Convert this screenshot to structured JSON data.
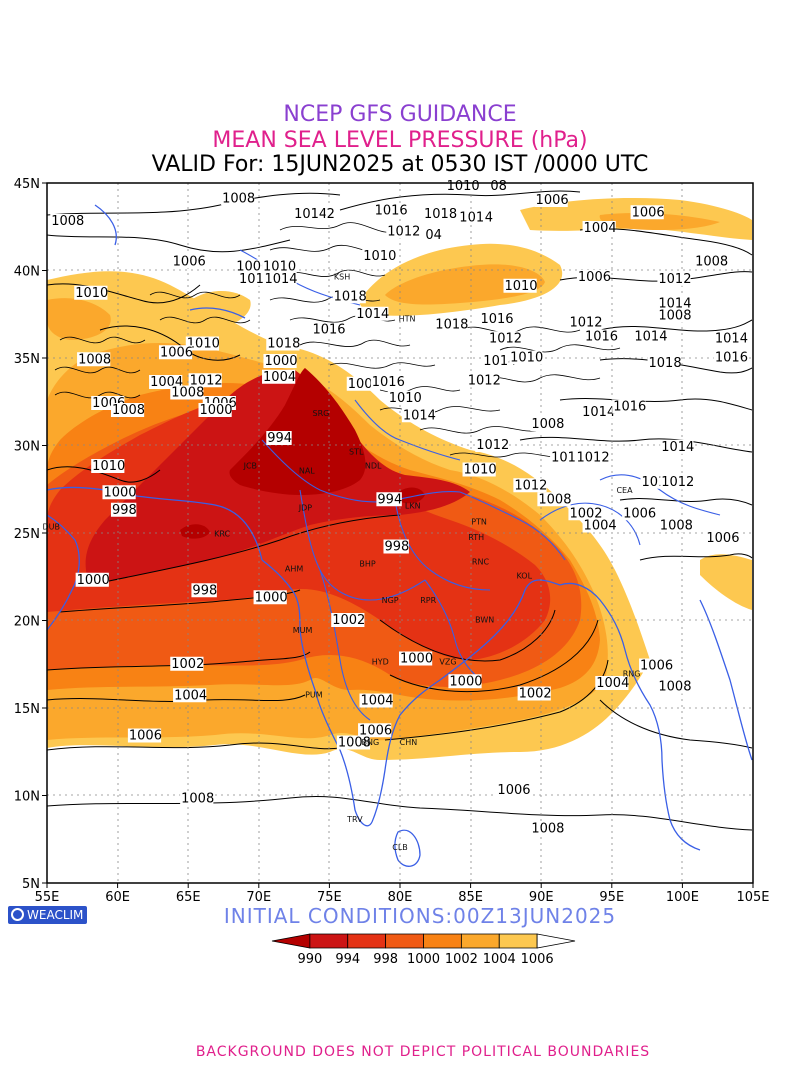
{
  "titles": {
    "line1": "NCEP GFS GUIDANCE",
    "line2": "MEAN SEA LEVEL PRESSURE (hPa)",
    "line3": "VALID For: 15JUN2025 at 0530 IST /0000 UTC"
  },
  "initial_conditions": "INITIAL CONDITIONS:00Z13JUN2025",
  "logo_text": "WEACLIM",
  "footer": "BACKGROUND DOES NOT DEPICT POLITICAL BOUNDARIES",
  "axes": {
    "lon_range": [
      55,
      105
    ],
    "lat_range": [
      5,
      45
    ],
    "lon_ticks": [
      "55E",
      "60E",
      "65E",
      "70E",
      "75E",
      "80E",
      "85E",
      "90E",
      "95E",
      "100E",
      "105E"
    ],
    "lat_ticks": [
      "45N",
      "40N",
      "35N",
      "30N",
      "25N",
      "20N",
      "15N",
      "10N",
      "5N"
    ],
    "grid": true
  },
  "legend": {
    "values": [
      "990",
      "994",
      "998",
      "1000",
      "1002",
      "1004",
      "1006"
    ],
    "colors": [
      "#b40000",
      "#cc1414",
      "#e43214",
      "#f05a14",
      "#f88214",
      "#fba82c",
      "#fdc850",
      "#ffffff"
    ]
  },
  "contour_labels": [
    {
      "text": "1008",
      "lon": 55.3,
      "lat": 42.6
    },
    {
      "text": "1008",
      "lon": 67.4,
      "lat": 43.9
    },
    {
      "text": "1010",
      "lon": 83.3,
      "lat": 44.6
    },
    {
      "text": "08",
      "lon": 86.4,
      "lat": 44.6
    },
    {
      "text": "1014",
      "lon": 72.5,
      "lat": 43.0
    },
    {
      "text": "2",
      "lon": 74.8,
      "lat": 43.0
    },
    {
      "text": "1016",
      "lon": 78.2,
      "lat": 43.2
    },
    {
      "text": "1018",
      "lon": 81.7,
      "lat": 43.0
    },
    {
      "text": "1016",
      "lon": 84.2,
      "lat": 42.8
    },
    {
      "text": "4",
      "lon": 86.0,
      "lat": 42.8
    },
    {
      "text": "1012",
      "lon": 79.1,
      "lat": 42.0
    },
    {
      "text": "04",
      "lon": 81.8,
      "lat": 41.8
    },
    {
      "text": "1006",
      "lon": 89.6,
      "lat": 43.8
    },
    {
      "text": "1006",
      "lon": 96.4,
      "lat": 43.1
    },
    {
      "text": "1004",
      "lon": 93.0,
      "lat": 42.2
    },
    {
      "text": "1006",
      "lon": 63.9,
      "lat": 40.3
    },
    {
      "text": "1006",
      "lon": 68.4,
      "lat": 40.0
    },
    {
      "text": "1010",
      "lon": 70.3,
      "lat": 40.0
    },
    {
      "text": "1010",
      "lon": 77.4,
      "lat": 40.6
    },
    {
      "text": "1008",
      "lon": 100.9,
      "lat": 40.3
    },
    {
      "text": "1012",
      "lon": 98.3,
      "lat": 39.3
    },
    {
      "text": "1006",
      "lon": 92.6,
      "lat": 39.4
    },
    {
      "text": "1010",
      "lon": 87.4,
      "lat": 38.9
    },
    {
      "text": "1014",
      "lon": 98.3,
      "lat": 37.9
    },
    {
      "text": "1008",
      "lon": 98.3,
      "lat": 37.2
    },
    {
      "text": "1010",
      "lon": 57.0,
      "lat": 38.5
    },
    {
      "text": "1016",
      "lon": 68.6,
      "lat": 39.3
    },
    {
      "text": "1014",
      "lon": 70.4,
      "lat": 39.3
    },
    {
      "text": "1018",
      "lon": 75.3,
      "lat": 38.3
    },
    {
      "text": "1014",
      "lon": 76.9,
      "lat": 37.3
    },
    {
      "text": "1018",
      "lon": 82.5,
      "lat": 36.7
    },
    {
      "text": "1016",
      "lon": 85.7,
      "lat": 37.0
    },
    {
      "text": "1012",
      "lon": 92.0,
      "lat": 36.8
    },
    {
      "text": "1016",
      "lon": 93.1,
      "lat": 36.0
    },
    {
      "text": "1014",
      "lon": 96.6,
      "lat": 36.0
    },
    {
      "text": "1012",
      "lon": 86.3,
      "lat": 35.9
    },
    {
      "text": "1016",
      "lon": 73.8,
      "lat": 36.4
    },
    {
      "text": "1018",
      "lon": 70.6,
      "lat": 35.6
    },
    {
      "text": "1014",
      "lon": 102.3,
      "lat": 35.9
    },
    {
      "text": "1016",
      "lon": 102.3,
      "lat": 34.8
    },
    {
      "text": "1018",
      "lon": 97.6,
      "lat": 34.5
    },
    {
      "text": "1010",
      "lon": 64.9,
      "lat": 35.6
    },
    {
      "text": "1008",
      "lon": 57.2,
      "lat": 34.7
    },
    {
      "text": "1006",
      "lon": 63.0,
      "lat": 35.1
    },
    {
      "text": "1004",
      "lon": 62.3,
      "lat": 33.4
    },
    {
      "text": "1012",
      "lon": 65.1,
      "lat": 33.5
    },
    {
      "text": "1008",
      "lon": 63.8,
      "lat": 32.8
    },
    {
      "text": "1006",
      "lon": 58.2,
      "lat": 32.2
    },
    {
      "text": "1008",
      "lon": 59.6,
      "lat": 31.8
    },
    {
      "text": "1006",
      "lon": 66.1,
      "lat": 32.2
    },
    {
      "text": "1000",
      "lon": 65.8,
      "lat": 31.8
    },
    {
      "text": "1000",
      "lon": 70.4,
      "lat": 34.6
    },
    {
      "text": "1004",
      "lon": 70.3,
      "lat": 33.7
    },
    {
      "text": "1008",
      "lon": 76.3,
      "lat": 33.3
    },
    {
      "text": "1016",
      "lon": 78.0,
      "lat": 33.4
    },
    {
      "text": "1012",
      "lon": 84.8,
      "lat": 33.5
    },
    {
      "text": "1014",
      "lon": 85.9,
      "lat": 34.6
    },
    {
      "text": "1010",
      "lon": 87.8,
      "lat": 34.8
    },
    {
      "text": "1010",
      "lon": 79.2,
      "lat": 32.5
    },
    {
      "text": "1014",
      "lon": 80.2,
      "lat": 31.5
    },
    {
      "text": "1014",
      "lon": 92.9,
      "lat": 31.7
    },
    {
      "text": "1016",
      "lon": 95.1,
      "lat": 32.0
    },
    {
      "text": "1008",
      "lon": 89.3,
      "lat": 31.0
    },
    {
      "text": "1012",
      "lon": 85.4,
      "lat": 29.8
    },
    {
      "text": "1014",
      "lon": 98.5,
      "lat": 29.7
    },
    {
      "text": "1012",
      "lon": 90.7,
      "lat": 29.1
    },
    {
      "text": "1012",
      "lon": 92.5,
      "lat": 29.1
    },
    {
      "text": "1010",
      "lon": 84.5,
      "lat": 28.4
    },
    {
      "text": "1012",
      "lon": 88.1,
      "lat": 27.5
    },
    {
      "text": "1011",
      "lon": 97.1,
      "lat": 27.7
    },
    {
      "text": "1012",
      "lon": 98.5,
      "lat": 27.7
    },
    {
      "text": "994",
      "lon": 70.6,
      "lat": 30.2
    },
    {
      "text": "994",
      "lon": 78.4,
      "lat": 26.7
    },
    {
      "text": "998",
      "lon": 78.9,
      "lat": 24.0
    },
    {
      "text": "998",
      "lon": 65.3,
      "lat": 21.5
    },
    {
      "text": "1000",
      "lon": 57.1,
      "lat": 22.1
    },
    {
      "text": "1000",
      "lon": 69.7,
      "lat": 21.1
    },
    {
      "text": "1000",
      "lon": 59.0,
      "lat": 27.1
    },
    {
      "text": "998",
      "lon": 59.6,
      "lat": 26.1
    },
    {
      "text": "1010",
      "lon": 58.2,
      "lat": 28.6
    },
    {
      "text": "1008",
      "lon": 89.8,
      "lat": 26.7
    },
    {
      "text": "1002",
      "lon": 92.0,
      "lat": 25.9
    },
    {
      "text": "1004",
      "lon": 93.0,
      "lat": 25.2
    },
    {
      "text": "1006",
      "lon": 95.8,
      "lat": 25.9
    },
    {
      "text": "1008",
      "lon": 98.4,
      "lat": 25.2
    },
    {
      "text": "1006",
      "lon": 101.7,
      "lat": 24.5
    },
    {
      "text": "1002",
      "lon": 75.2,
      "lat": 19.8
    },
    {
      "text": "1000",
      "lon": 80.0,
      "lat": 17.6
    },
    {
      "text": "1000",
      "lon": 83.5,
      "lat": 16.3
    },
    {
      "text": "1002",
      "lon": 63.8,
      "lat": 17.3
    },
    {
      "text": "1004",
      "lon": 64.0,
      "lat": 15.5
    },
    {
      "text": "1004",
      "lon": 77.2,
      "lat": 15.2
    },
    {
      "text": "1002",
      "lon": 88.4,
      "lat": 15.6
    },
    {
      "text": "1004",
      "lon": 93.9,
      "lat": 16.2
    },
    {
      "text": "1006",
      "lon": 97.0,
      "lat": 17.2
    },
    {
      "text": "1008",
      "lon": 98.3,
      "lat": 16.0
    },
    {
      "text": "1006",
      "lon": 60.8,
      "lat": 13.2
    },
    {
      "text": "1006",
      "lon": 77.1,
      "lat": 13.5
    },
    {
      "text": "1008",
      "lon": 75.6,
      "lat": 12.8
    },
    {
      "text": "1006",
      "lon": 86.9,
      "lat": 10.1
    },
    {
      "text": "1008",
      "lon": 64.5,
      "lat": 9.6
    },
    {
      "text": "1008",
      "lon": 89.3,
      "lat": 7.9
    }
  ],
  "station_labels": [
    {
      "text": "SRG",
      "lon": 74.4,
      "lat": 31.7
    },
    {
      "text": "JCB",
      "lon": 69.4,
      "lat": 28.7
    },
    {
      "text": "NAL",
      "lon": 73.4,
      "lat": 28.4
    },
    {
      "text": "STL",
      "lon": 76.9,
      "lat": 29.5
    },
    {
      "text": "NDL",
      "lon": 78.1,
      "lat": 28.7
    },
    {
      "text": "JDP",
      "lon": 73.3,
      "lat": 26.3
    },
    {
      "text": "LKN",
      "lon": 80.9,
      "lat": 26.4
    },
    {
      "text": "PTN",
      "lon": 85.6,
      "lat": 25.5
    },
    {
      "text": "RTH",
      "lon": 85.4,
      "lat": 24.6
    },
    {
      "text": "BHP",
      "lon": 77.7,
      "lat": 23.1
    },
    {
      "text": "RNC",
      "lon": 85.7,
      "lat": 23.2
    },
    {
      "text": "AHM",
      "lon": 72.5,
      "lat": 22.8
    },
    {
      "text": "KRC",
      "lon": 67.4,
      "lat": 24.8
    },
    {
      "text": "KOL",
      "lon": 88.8,
      "lat": 22.4
    },
    {
      "text": "NGP",
      "lon": 79.3,
      "lat": 21.0
    },
    {
      "text": "RPR",
      "lon": 82.0,
      "lat": 21.0
    },
    {
      "text": "BWN",
      "lon": 86.0,
      "lat": 19.9
    },
    {
      "text": "MUM",
      "lon": 73.1,
      "lat": 19.3
    },
    {
      "text": "HYD",
      "lon": 78.6,
      "lat": 17.5
    },
    {
      "text": "VZG",
      "lon": 83.4,
      "lat": 17.5
    },
    {
      "text": "RNG",
      "lon": 96.4,
      "lat": 16.8
    },
    {
      "text": "PUM",
      "lon": 73.9,
      "lat": 15.6
    },
    {
      "text": "BNG",
      "lon": 77.9,
      "lat": 12.9
    },
    {
      "text": "CHN",
      "lon": 80.6,
      "lat": 12.9
    },
    {
      "text": "TRV",
      "lon": 76.8,
      "lat": 8.5
    },
    {
      "text": "CLB",
      "lon": 80.0,
      "lat": 6.9
    },
    {
      "text": "HTN",
      "lon": 80.5,
      "lat": 37.1
    },
    {
      "text": "KSH",
      "lon": 75.9,
      "lat": 39.5
    },
    {
      "text": "CEA",
      "lon": 95.9,
      "lat": 27.3
    },
    {
      "text": "DUB",
      "lon": 55.3,
      "lat": 25.2
    }
  ]
}
